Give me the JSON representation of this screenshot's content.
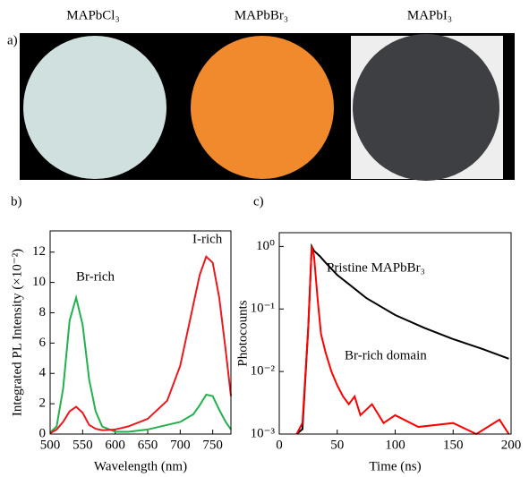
{
  "panel_a": {
    "label": "a)",
    "samples": [
      "MAPbCl₃",
      "MAPbBr₃",
      "MAPbI₃"
    ]
  },
  "chart_data": [
    {
      "type": "line",
      "panel": "b)",
      "xlabel": "Wavelength (nm)",
      "ylabel": "Integrated PL Intensity (×10⁻²)",
      "annotations": [
        "Br-rich",
        "I-rich"
      ],
      "x": [
        500,
        510,
        520,
        530,
        540,
        550,
        560,
        570,
        580,
        600,
        620,
        650,
        680,
        700,
        720,
        730,
        740,
        750,
        760,
        770,
        778
      ],
      "series": [
        {
          "color": "#22b14c",
          "values": [
            0.1,
            0.5,
            3,
            7.5,
            9,
            7.2,
            3.6,
            1.5,
            0.5,
            0.15,
            0.15,
            0.3,
            0.6,
            0.8,
            1.3,
            1.9,
            2.6,
            2.5,
            1.6,
            0.8,
            0.3
          ]
        },
        {
          "color": "#e8191f",
          "values": [
            0.05,
            0.3,
            0.8,
            1.5,
            1.8,
            1.4,
            0.6,
            0.35,
            0.25,
            0.3,
            0.5,
            1,
            2.2,
            4.5,
            8.5,
            10.5,
            11.7,
            11.3,
            9,
            5.5,
            2.5
          ]
        }
      ],
      "xlim": [
        500,
        778
      ],
      "xticks": [
        500,
        550,
        600,
        650,
        700,
        750
      ],
      "ylim": [
        0,
        13.4
      ],
      "yticks": [
        0,
        2,
        4,
        6,
        8,
        10,
        12
      ]
    },
    {
      "type": "line",
      "panel": "c)",
      "xlabel": "Time (ns)",
      "ylabel": "Photocounts",
      "log_y": true,
      "annotations": [
        "Pristine MAPbBr₃",
        "Br-rich domain"
      ],
      "series": [
        {
          "color": "#000000",
          "x": [
            15,
            20,
            25,
            28,
            30,
            35,
            40,
            50,
            60,
            75,
            100,
            125,
            150,
            175,
            198
          ],
          "values": [
            0.001,
            0.0012,
            0.05,
            1,
            0.85,
            0.7,
            0.55,
            0.35,
            0.25,
            0.15,
            0.08,
            0.05,
            0.033,
            0.023,
            0.016
          ]
        },
        {
          "color": "#ff0000",
          "x": [
            15,
            20,
            25,
            28,
            30,
            33,
            36,
            40,
            45,
            50,
            55,
            60,
            65,
            70,
            80,
            90,
            100,
            120,
            150,
            170,
            190,
            198
          ],
          "values": [
            0.001,
            0.0015,
            0.05,
            1,
            0.7,
            0.15,
            0.04,
            0.02,
            0.01,
            0.006,
            0.004,
            0.003,
            0.004,
            0.002,
            0.003,
            0.0015,
            0.002,
            0.0013,
            0.0015,
            0.001,
            0.0017,
            0.001
          ]
        }
      ],
      "xlim": [
        0,
        200
      ],
      "xticks": [
        0,
        50,
        100,
        150,
        200
      ],
      "ylim": [
        0.001,
        1.66
      ],
      "yticks": [
        {
          "value": 0.001,
          "label": "10⁻³"
        },
        {
          "value": 0.01,
          "label": "10⁻²"
        },
        {
          "value": 0.1,
          "label": "10⁻¹"
        },
        {
          "value": 1,
          "label": "10⁰"
        }
      ]
    }
  ]
}
